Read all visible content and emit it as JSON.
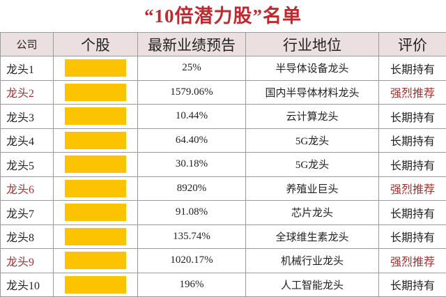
{
  "title": "“10倍潜力股”名单",
  "table": {
    "headers": [
      "公司",
      "个股",
      "最新业绩预告",
      "行业地位",
      "评价"
    ],
    "rows": [
      {
        "company": "龙头1",
        "forecast": "25%",
        "industry": "半导体设备龙头",
        "rating": "长期持有",
        "color": "#222222"
      },
      {
        "company": "龙头2",
        "forecast": "1579.06%",
        "industry": "国内半导体材料龙头",
        "rating": "强烈推荐",
        "color": "#a8302e"
      },
      {
        "company": "龙头3",
        "forecast": "10.44%",
        "industry": "云计算龙头",
        "rating": "长期持有",
        "color": "#222222"
      },
      {
        "company": "龙头4",
        "forecast": "64.40%",
        "industry": "5G龙头",
        "rating": "长期持有",
        "color": "#222222"
      },
      {
        "company": "龙头5",
        "forecast": "30.18%",
        "industry": "5G龙头",
        "rating": "长期持有",
        "color": "#222222"
      },
      {
        "company": "龙头6",
        "forecast": "8920%",
        "industry": "养殖业巨头",
        "rating": "强烈推荐",
        "color": "#a8302e"
      },
      {
        "company": "龙头7",
        "forecast": "91.08%",
        "industry": "芯片龙头",
        "rating": "长期持有",
        "color": "#222222"
      },
      {
        "company": "龙头8",
        "forecast": "135.74%",
        "industry": "全球维生素龙头",
        "rating": "长期持有",
        "color": "#222222"
      },
      {
        "company": "龙头9",
        "forecast": "1020.17%",
        "industry": "机械行业龙头",
        "rating": "强烈推荐",
        "color": "#a8302e"
      },
      {
        "company": "龙头10",
        "forecast": "196%",
        "industry": "人工智能龙头",
        "rating": "长期持有",
        "color": "#222222"
      }
    ]
  }
}
